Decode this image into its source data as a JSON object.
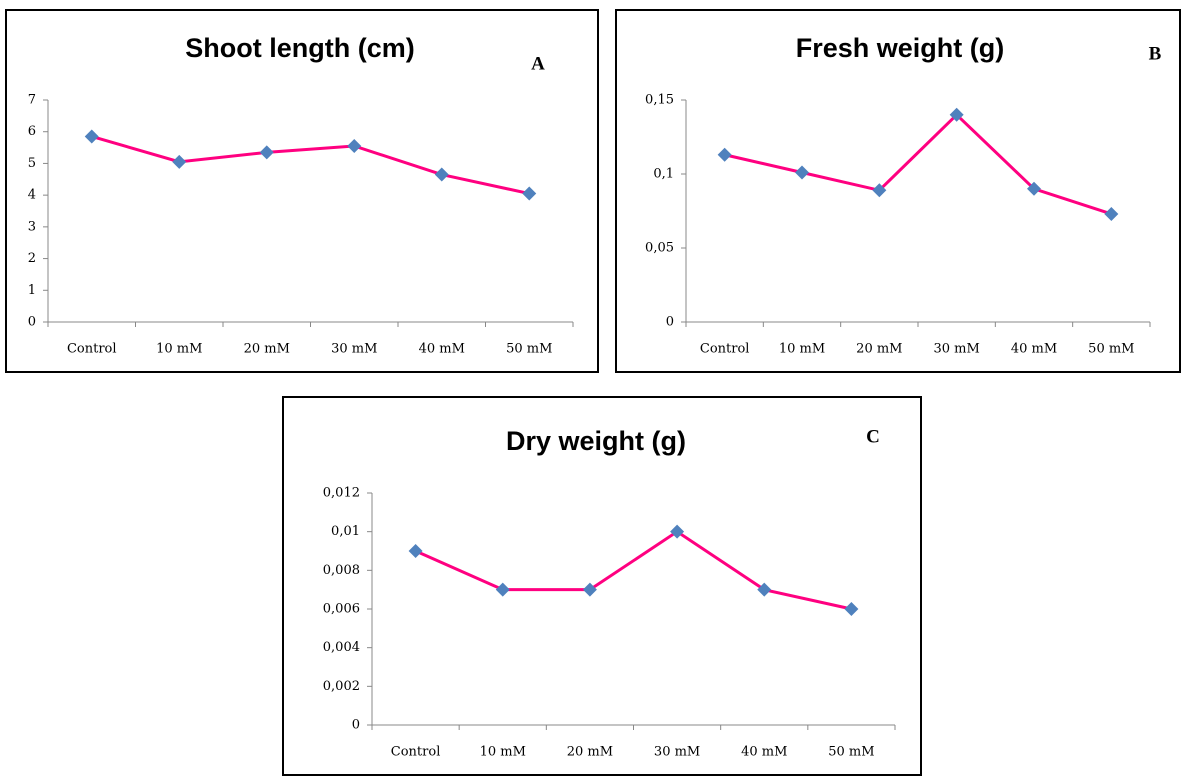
{
  "chart_data": [
    {
      "type": "line",
      "title": "Shoot length (cm)",
      "annotation": "A",
      "categories": [
        "Control",
        "10 mM",
        "20 mM",
        "30 mM",
        "40 mM",
        "50 mM"
      ],
      "values": [
        5.85,
        5.05,
        5.35,
        5.55,
        4.65,
        4.05
      ],
      "color": "#ff0080",
      "marker_color": "#4f81bd",
      "ylim": [
        0,
        7
      ],
      "yticks": [
        0,
        1,
        2,
        3,
        4,
        5,
        6,
        7
      ]
    },
    {
      "type": "line",
      "title": "Fresh weight (g)",
      "annotation": "B",
      "categories": [
        "Control",
        "10 mM",
        "20 mM",
        "30 mM",
        "40 mM",
        "50 mM"
      ],
      "values": [
        0.113,
        0.101,
        0.089,
        0.14,
        0.09,
        0.073
      ],
      "color": "#ff0080",
      "marker_color": "#4f81bd",
      "ylim": [
        0,
        0.15
      ],
      "yticks": [
        0,
        {
          "value": 0.05,
          "label": "0,05"
        },
        {
          "value": 0.1,
          "label": "0,1"
        },
        {
          "value": 0.15,
          "label": "0,15"
        }
      ]
    },
    {
      "type": "line",
      "title": "Dry weight (g)",
      "annotation": "C",
      "categories": [
        "Control",
        "10 mM",
        "20 mM",
        "30 mM",
        "40 mM",
        "50 mM"
      ],
      "values": [
        0.009,
        0.007,
        0.007,
        0.01,
        0.007,
        0.006
      ],
      "color": "#ff0080",
      "marker_color": "#4f81bd",
      "ylim": [
        0,
        0.012
      ],
      "yticks": [
        0,
        {
          "value": 0.002,
          "label": "0,002"
        },
        {
          "value": 0.004,
          "label": "0,004"
        },
        {
          "value": 0.006,
          "label": "0,006"
        },
        {
          "value": 0.008,
          "label": "0,008"
        },
        {
          "value": 0.01,
          "label": "0,01"
        },
        {
          "value": 0.012,
          "label": "0,012"
        }
      ]
    }
  ]
}
